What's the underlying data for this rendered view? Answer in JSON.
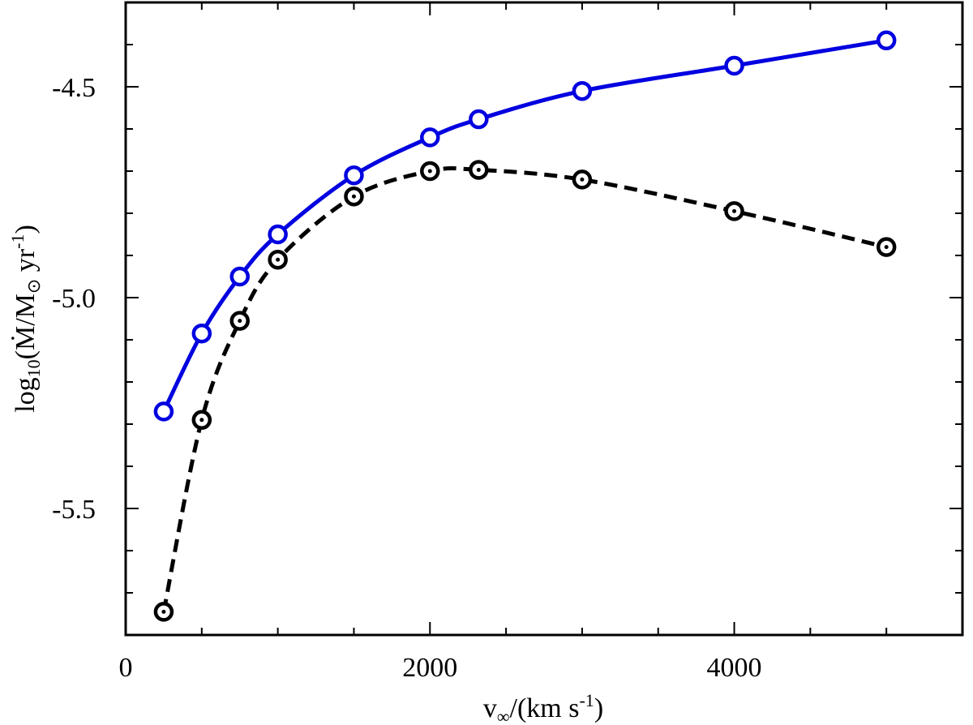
{
  "chart_data": {
    "type": "line",
    "xlabel": {
      "main": "v",
      "sub": "∞",
      "rest": "/(km s",
      "sup": "-1",
      "end": ")"
    },
    "ylabel": {
      "pre": "log",
      "sub": "10",
      "mid": "(Ṁ/M",
      "sub2": "⊙",
      "rest": " yr",
      "sup": "-1",
      "end": ")"
    },
    "xlim": [
      0,
      5500
    ],
    "ylim": [
      -5.8,
      -4.3
    ],
    "x_ticks": [
      0,
      2000,
      4000
    ],
    "x_minor_ticks": [
      500,
      1000,
      1500,
      2500,
      3000,
      3500,
      4500,
      5000
    ],
    "y_ticks": [
      -5.5,
      -5.0,
      -4.5
    ],
    "y_tick_labels": [
      "-5.5",
      "-5.0",
      "-4.5"
    ],
    "y_minor_ticks": [
      -5.7,
      -5.6,
      -5.4,
      -5.3,
      -5.2,
      -5.1,
      -4.9,
      -4.8,
      -4.7,
      -4.6,
      -4.4
    ],
    "grid": false,
    "series": [
      {
        "color": "#0000e0",
        "line_style": "solid",
        "marker": "open-circle",
        "x": [
          250,
          500,
          750,
          1000,
          1500,
          2000,
          2320,
          3000,
          4000,
          5000
        ],
        "y": [
          -5.27,
          -5.085,
          -4.95,
          -4.85,
          -4.71,
          -4.62,
          -4.577,
          -4.51,
          -4.45,
          -4.39
        ]
      },
      {
        "color": "#000000",
        "line_style": "dashed",
        "marker": "open-circle-dot",
        "x": [
          250,
          500,
          750,
          1000,
          1500,
          2000,
          2320,
          3000,
          4000,
          5000
        ],
        "y": [
          -5.745,
          -5.29,
          -5.055,
          -4.91,
          -4.76,
          -4.7,
          -4.697,
          -4.72,
          -4.795,
          -4.88
        ]
      }
    ]
  }
}
